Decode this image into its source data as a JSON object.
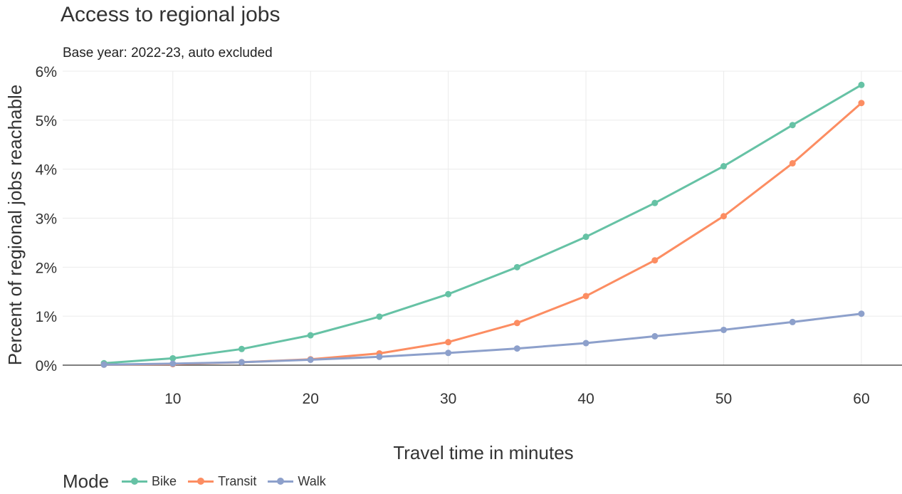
{
  "chart_data": {
    "type": "line",
    "title": "Access to regional jobs",
    "subtitle": "Base year: 2022-23, auto excluded",
    "xlabel": "Travel time in minutes",
    "ylabel": "Percent of regional jobs reachable",
    "x": [
      5,
      10,
      15,
      20,
      25,
      30,
      35,
      40,
      45,
      50,
      55,
      60
    ],
    "xlim": [
      2,
      63
    ],
    "ylim": [
      0,
      6
    ],
    "x_ticks": [
      10,
      20,
      30,
      40,
      50,
      60
    ],
    "y_ticks": [
      0,
      1,
      2,
      3,
      4,
      5,
      6
    ],
    "y_tick_labels": [
      "0%",
      "1%",
      "2%",
      "3%",
      "4%",
      "5%",
      "6%"
    ],
    "grid": true,
    "legend_title": "Mode",
    "legend_position": "bottom",
    "series": [
      {
        "name": "Bike",
        "color": "#66c2a5",
        "values": [
          0.04,
          0.14,
          0.33,
          0.61,
          0.99,
          1.45,
          2.0,
          2.62,
          3.31,
          4.06,
          4.9,
          5.72
        ]
      },
      {
        "name": "Transit",
        "color": "#fc8d62",
        "values": [
          0.01,
          0.02,
          0.06,
          0.12,
          0.24,
          0.47,
          0.86,
          1.41,
          2.14,
          3.04,
          4.12,
          5.35
        ]
      },
      {
        "name": "Walk",
        "color": "#8da0cb",
        "values": [
          0.01,
          0.03,
          0.06,
          0.11,
          0.17,
          0.25,
          0.34,
          0.45,
          0.59,
          0.72,
          0.88,
          1.05
        ]
      }
    ]
  }
}
